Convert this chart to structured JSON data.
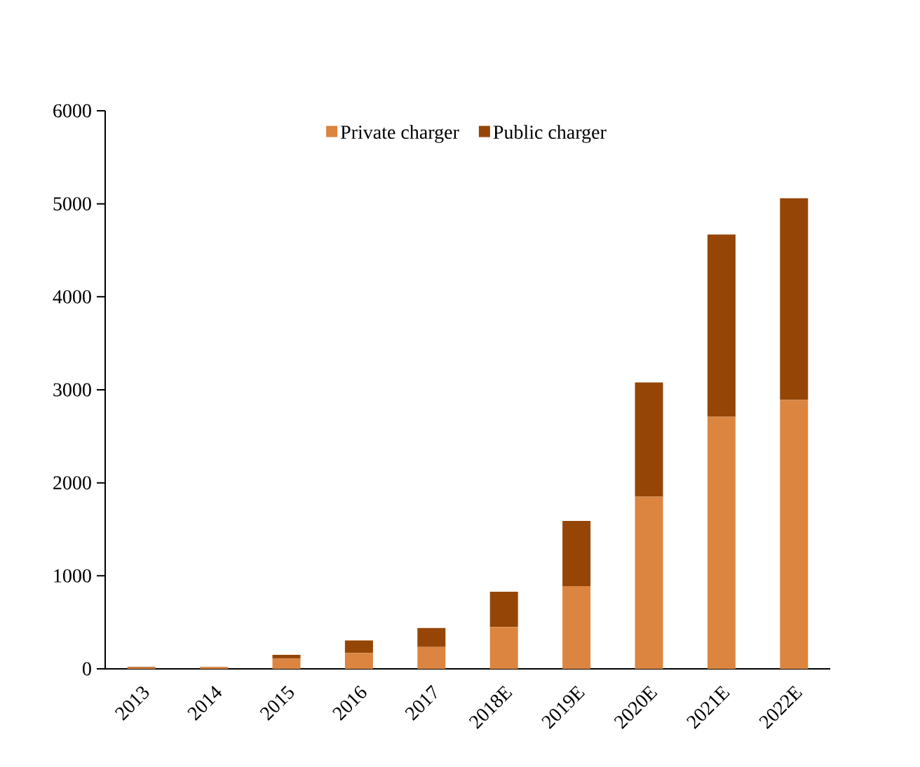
{
  "chart_data": {
    "type": "bar",
    "stacked": true,
    "categories": [
      "2013",
      "2014",
      "2015",
      "2016",
      "2017",
      "2018E",
      "2019E",
      "2020E",
      "2021E",
      "2022E"
    ],
    "series": [
      {
        "name": "Private charger",
        "color": "#dc8540",
        "values": [
          15,
          18,
          110,
          170,
          235,
          450,
          890,
          1850,
          2710,
          2890
        ]
      },
      {
        "name": "Public charger",
        "color": "#954606",
        "values": [
          5,
          5,
          40,
          135,
          205,
          380,
          700,
          1230,
          1960,
          2170
        ]
      }
    ],
    "ylim": [
      0,
      6000
    ],
    "yticks": [
      0,
      1000,
      2000,
      3000,
      4000,
      5000,
      6000
    ],
    "grid": false,
    "legend": "top"
  }
}
